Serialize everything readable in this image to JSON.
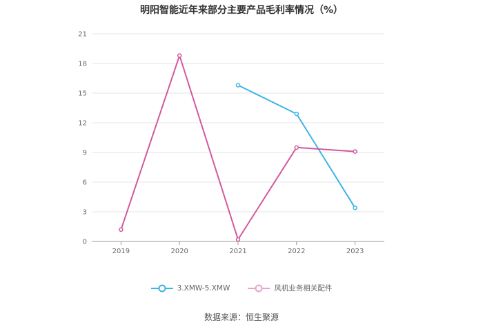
{
  "chart_data": {
    "type": "line",
    "title": "明阳智能近年来部分主要产品毛利率情况（%）",
    "categories": [
      "2019",
      "2020",
      "2021",
      "2022",
      "2023"
    ],
    "ylim": [
      0,
      21
    ],
    "yticks": [
      "0",
      "3",
      "6",
      "9",
      "12",
      "15",
      "18",
      "21"
    ],
    "grid": true,
    "legend_position": "bottom",
    "series": [
      {
        "name": "3.XMW-5.XMW",
        "color": "#3cb4e6",
        "values": [
          null,
          null,
          15.8,
          12.9,
          3.4
        ]
      },
      {
        "name": "风机业务相关配件",
        "color": "#d2589f",
        "values": [
          1.2,
          18.8,
          0.2,
          9.5,
          9.1
        ]
      }
    ]
  },
  "source": "数据来源：恒生聚源"
}
